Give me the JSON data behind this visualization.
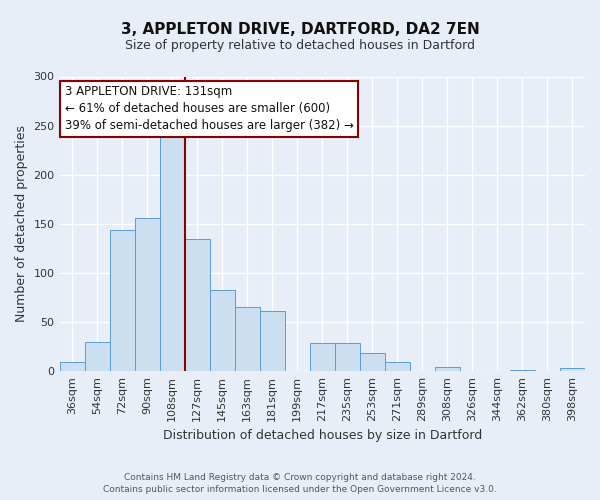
{
  "title": "3, APPLETON DRIVE, DARTFORD, DA2 7EN",
  "subtitle": "Size of property relative to detached houses in Dartford",
  "xlabel": "Distribution of detached houses by size in Dartford",
  "ylabel": "Number of detached properties",
  "footnote1": "Contains HM Land Registry data © Crown copyright and database right 2024.",
  "footnote2": "Contains public sector information licensed under the Open Government Licence v3.0.",
  "bar_labels": [
    "36sqm",
    "54sqm",
    "72sqm",
    "90sqm",
    "108sqm",
    "127sqm",
    "145sqm",
    "163sqm",
    "181sqm",
    "199sqm",
    "217sqm",
    "235sqm",
    "253sqm",
    "271sqm",
    "289sqm",
    "308sqm",
    "326sqm",
    "344sqm",
    "362sqm",
    "380sqm",
    "398sqm"
  ],
  "bar_values": [
    9,
    30,
    144,
    156,
    242,
    135,
    83,
    65,
    61,
    0,
    29,
    29,
    19,
    9,
    0,
    4,
    0,
    0,
    1,
    0,
    3
  ],
  "bar_color": "#ccdff0",
  "bar_edge_color": "#5b9bd5",
  "highlight_bar_index": 5,
  "highlight_line_color": "#8b0000",
  "ylim": [
    0,
    300
  ],
  "yticks": [
    0,
    50,
    100,
    150,
    200,
    250,
    300
  ],
  "annotation_line1": "3 APPLETON DRIVE: 131sqm",
  "annotation_line2": "← 61% of detached houses are smaller (600)",
  "annotation_line3": "39% of semi-detached houses are larger (382) →",
  "annotation_box_color": "#ffffff",
  "annotation_box_edge": "#8b0000",
  "bg_color": "#e8eef8",
  "grid_color": "#ffffff",
  "title_fontsize": 11,
  "subtitle_fontsize": 9,
  "ylabel_fontsize": 9,
  "xlabel_fontsize": 9,
  "tick_fontsize": 8,
  "footnote_fontsize": 6.5
}
